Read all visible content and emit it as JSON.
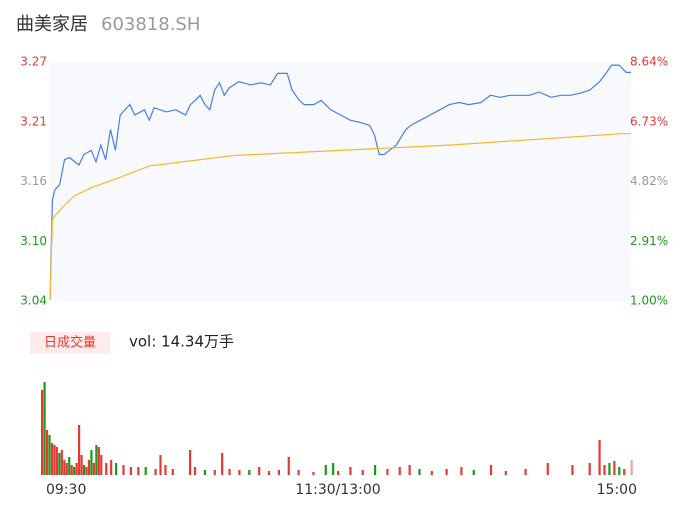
{
  "chart_data": [
    {
      "type": "line",
      "title": "曲美家居",
      "subtitle": "603818.SH",
      "xlim": [
        0,
        240
      ],
      "ylim": [
        3.04,
        3.27
      ],
      "yticks": [
        3.04,
        {
          "value": 3.0975,
          "label": "3.10"
        },
        {
          "value": 3.155,
          "label": "3.16"
        },
        {
          "value": 3.2125,
          "label": "3.21"
        },
        3.27
      ],
      "y2lim": [
        1,
        8.64
      ],
      "y2ticks": [
        {
          "value": 1,
          "label": "1.00%"
        },
        {
          "value": 2.91,
          "label": "2.91%"
        },
        {
          "value": 4.82,
          "label": "4.82%"
        },
        {
          "value": 6.73,
          "label": "6.73%"
        },
        {
          "value": 8.64,
          "label": "8.64%"
        }
      ],
      "tick_colors": [
        "#1a9a1a",
        "#1a9a1a",
        "#999999",
        "#e53935",
        "#e53935"
      ],
      "background": "#f8f9fd",
      "series": [
        {
          "color": "#4a7fe0",
          "x": [
            0,
            1,
            2,
            4,
            6,
            8,
            12,
            14,
            17,
            19,
            21,
            23,
            25,
            27,
            29,
            31,
            33,
            35,
            39,
            41,
            43,
            48,
            52,
            56,
            58,
            60,
            62,
            64,
            66,
            68,
            70,
            72,
            74,
            76,
            78,
            83,
            87,
            91,
            94,
            98,
            100,
            103,
            105,
            109,
            112,
            116,
            120,
            124,
            128,
            132,
            134,
            136,
            138,
            143,
            147,
            149,
            153,
            157,
            161,
            165,
            169,
            173,
            178,
            182,
            186,
            190,
            194,
            198,
            202,
            207,
            211,
            215,
            219,
            223,
            227,
            229,
            232,
            235,
            238,
            240
          ],
          "values": [
            3.041,
            3.137,
            3.147,
            3.152,
            3.176,
            3.178,
            3.171,
            3.181,
            3.185,
            3.174,
            3.19,
            3.176,
            3.205,
            3.185,
            3.219,
            3.224,
            3.229,
            3.219,
            3.224,
            3.214,
            3.226,
            3.222,
            3.224,
            3.219,
            3.229,
            3.233,
            3.238,
            3.229,
            3.224,
            3.243,
            3.25,
            3.238,
            3.245,
            3.248,
            3.251,
            3.248,
            3.25,
            3.248,
            3.259,
            3.259,
            3.243,
            3.233,
            3.229,
            3.229,
            3.233,
            3.224,
            3.219,
            3.214,
            3.212,
            3.209,
            3.2,
            3.181,
            3.181,
            3.19,
            3.205,
            3.209,
            3.214,
            3.219,
            3.224,
            3.229,
            3.231,
            3.229,
            3.231,
            3.238,
            3.236,
            3.238,
            3.238,
            3.238,
            3.241,
            3.236,
            3.238,
            3.238,
            3.24,
            3.243,
            3.251,
            3.257,
            3.267,
            3.267,
            3.26,
            3.26
          ]
        },
        {
          "color": "#f5b82e",
          "x": [
            0,
            1,
            2,
            6,
            10,
            17,
            29,
            41,
            76,
            165,
            236,
            240
          ],
          "values": [
            3.041,
            3.118,
            3.122,
            3.132,
            3.141,
            3.149,
            3.159,
            3.17,
            3.18,
            3.19,
            3.201,
            3.201
          ]
        }
      ]
    },
    {
      "type": "bar",
      "label": "日成交量",
      "annotation": "vol: 14.34万手",
      "xlim": [
        0,
        240
      ],
      "ylim": [
        0,
        100
      ],
      "xticks": [
        {
          "value": 0,
          "label": "09:30"
        },
        {
          "value": 120,
          "label": "11:30/13:00"
        },
        {
          "value": 240,
          "label": "15:00"
        }
      ],
      "x": [
        0,
        1,
        2,
        3,
        4,
        5,
        6,
        7,
        8,
        9,
        10,
        11,
        12,
        13,
        14,
        15,
        16,
        17,
        18,
        19,
        20,
        21,
        22,
        23,
        24,
        26,
        28,
        30,
        33,
        36,
        39,
        42,
        46,
        48,
        50,
        53,
        60,
        62,
        66,
        70,
        73,
        76,
        80,
        84,
        88,
        92,
        96,
        100,
        104,
        110,
        115,
        118,
        120,
        125,
        130,
        135,
        140,
        145,
        149,
        153,
        158,
        164,
        170,
        175,
        182,
        188,
        196,
        205,
        215,
        222,
        226,
        228,
        230,
        232,
        234,
        236,
        239
      ],
      "values": [
        85,
        93,
        45,
        40,
        32,
        30,
        28,
        22,
        25,
        15,
        12,
        18,
        10,
        8,
        12,
        50,
        20,
        10,
        8,
        15,
        25,
        12,
        30,
        28,
        20,
        12,
        15,
        12,
        10,
        8,
        8,
        8,
        6,
        20,
        10,
        6,
        25,
        8,
        5,
        5,
        22,
        6,
        5,
        5,
        8,
        4,
        5,
        18,
        5,
        3,
        10,
        12,
        4,
        8,
        5,
        10,
        6,
        8,
        10,
        6,
        4,
        6,
        8,
        5,
        10,
        4,
        6,
        12,
        10,
        12,
        35,
        10,
        12,
        14,
        8,
        6,
        15
      ],
      "colors": [
        "#e53935",
        "#1a9a1a",
        "#e53935",
        "#1a9a1a",
        "#e53935",
        "#e53935",
        "#e53935",
        "#1a9a1a",
        "#e53935",
        "#e53935",
        "#e53935",
        "#1a9a1a",
        "#e53935",
        "#1a9a1a",
        "#e53935",
        "#e53935",
        "#e53935",
        "#1a9a1a",
        "#e53935",
        "#e53935",
        "#1a9a1a",
        "#e53935",
        "#1a9a1a",
        "#e53935",
        "#e53935",
        "#e53935",
        "#e53935",
        "#1a9a1a",
        "#e53935",
        "#e53935",
        "#e53935",
        "#1a9a1a",
        "#e53935",
        "#e53935",
        "#e53935",
        "#e53935",
        "#e53935",
        "#e53935",
        "#1a9a1a",
        "#e53935",
        "#e53935",
        "#e53935",
        "#e53935",
        "#1a9a1a",
        "#e53935",
        "#e53935",
        "#e53935",
        "#e53935",
        "#e53935",
        "#e53935",
        "#1a9a1a",
        "#1a9a1a",
        "#e53935",
        "#e53935",
        "#e53935",
        "#1a9a1a",
        "#e53935",
        "#e53935",
        "#e53935",
        "#1a9a1a",
        "#e53935",
        "#e53935",
        "#e53935",
        "#1a9a1a",
        "#e53935",
        "#e53935",
        "#e53935",
        "#e53935",
        "#e53935",
        "#e53935",
        "#e53935",
        "#e53935",
        "#1a9a1a",
        "#e53935",
        "#1a9a1a",
        "#e53935",
        "#f4a0a0"
      ]
    }
  ]
}
